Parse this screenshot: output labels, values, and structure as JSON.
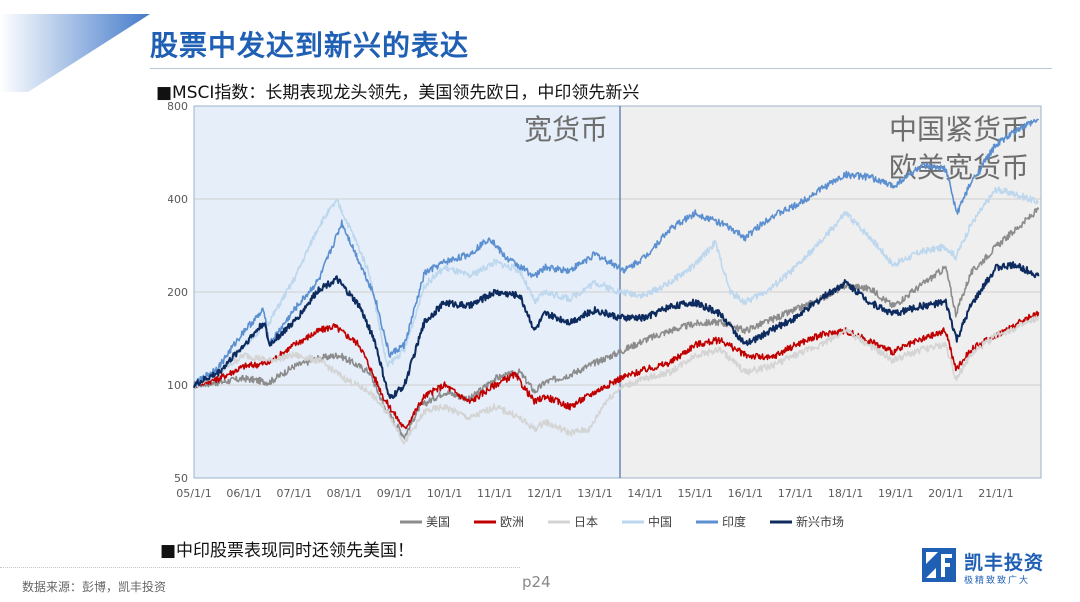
{
  "page": {
    "title": "股票中发达到新兴的表达",
    "bullet1": "■MSCI指数：长期表现龙头领先，美国领先欧日，中印领先新兴",
    "bullet2": "■中印股票表现同时还领先美国！",
    "source": "数据来源：彭博，凯丰投资",
    "page_number": "p24"
  },
  "logo": {
    "name": "凯丰投资",
    "slogan": "极精致致广大"
  },
  "colors": {
    "title": "#1f5fb4",
    "region_easy": "#e6eff9",
    "region_tight": "#efefef",
    "divider": "#4a6fa5"
  },
  "chart_data": {
    "type": "line",
    "y_scale": "log",
    "ylim": [
      50,
      800
    ],
    "y_ticks": [
      50,
      100,
      200,
      400,
      800
    ],
    "y_tick_labels": [
      "50",
      "100",
      "200",
      "400",
      "800"
    ],
    "x_tick_labels": [
      "05/1/1",
      "06/1/1",
      "07/1/1",
      "08/1/1",
      "09/1/1",
      "10/1/1",
      "11/1/1",
      "12/1/1",
      "13/1/1",
      "14/1/1",
      "15/1/1",
      "16/1/1",
      "17/1/1",
      "18/1/1",
      "19/1/1",
      "20/1/1",
      "21/1/1"
    ],
    "xlim": [
      2005.0,
      2021.9
    ],
    "regions": [
      {
        "label": "宽货币",
        "x_start": 2005.0,
        "x_end": 2013.5
      },
      {
        "label": "中国紧货币\n欧美宽货币",
        "x_start": 2013.5,
        "x_end": 2021.9
      }
    ],
    "legend_position": "bottom",
    "series": [
      {
        "name": "美国",
        "color": "#8c8c8c",
        "points": [
          [
            2005,
            100
          ],
          [
            2005.5,
            102
          ],
          [
            2006,
            105
          ],
          [
            2006.5,
            102
          ],
          [
            2007,
            115
          ],
          [
            2007.5,
            122
          ],
          [
            2007.9,
            125
          ],
          [
            2008.5,
            110
          ],
          [
            2008.8,
            85
          ],
          [
            2009.2,
            68
          ],
          [
            2009.5,
            85
          ],
          [
            2010,
            95
          ],
          [
            2010.5,
            90
          ],
          [
            2011,
            105
          ],
          [
            2011.5,
            110
          ],
          [
            2011.8,
            95
          ],
          [
            2012,
            102
          ],
          [
            2012.5,
            108
          ],
          [
            2013,
            118
          ],
          [
            2013.5,
            128
          ],
          [
            2014,
            140
          ],
          [
            2014.5,
            150
          ],
          [
            2015,
            158
          ],
          [
            2015.5,
            160
          ],
          [
            2016,
            150
          ],
          [
            2016.5,
            162
          ],
          [
            2017,
            175
          ],
          [
            2017.5,
            190
          ],
          [
            2018,
            210
          ],
          [
            2018.5,
            205
          ],
          [
            2018.95,
            180
          ],
          [
            2019.5,
            210
          ],
          [
            2020,
            240
          ],
          [
            2020.2,
            170
          ],
          [
            2020.5,
            230
          ],
          [
            2021,
            280
          ],
          [
            2021.5,
            330
          ],
          [
            2021.85,
            370
          ]
        ]
      },
      {
        "name": "欧洲",
        "color": "#c00000",
        "points": [
          [
            2005,
            100
          ],
          [
            2005.5,
            105
          ],
          [
            2006,
            115
          ],
          [
            2006.5,
            118
          ],
          [
            2007,
            135
          ],
          [
            2007.5,
            150
          ],
          [
            2007.8,
            155
          ],
          [
            2008.3,
            135
          ],
          [
            2008.8,
            90
          ],
          [
            2009.2,
            72
          ],
          [
            2009.6,
            92
          ],
          [
            2010,
            100
          ],
          [
            2010.5,
            88
          ],
          [
            2011,
            100
          ],
          [
            2011.4,
            108
          ],
          [
            2011.8,
            88
          ],
          [
            2012,
            92
          ],
          [
            2012.5,
            85
          ],
          [
            2013,
            95
          ],
          [
            2013.5,
            105
          ],
          [
            2014,
            112
          ],
          [
            2014.5,
            118
          ],
          [
            2015,
            135
          ],
          [
            2015.5,
            140
          ],
          [
            2016,
            125
          ],
          [
            2016.5,
            122
          ],
          [
            2017,
            135
          ],
          [
            2017.5,
            145
          ],
          [
            2018,
            150
          ],
          [
            2018.95,
            128
          ],
          [
            2019.5,
            140
          ],
          [
            2020,
            150
          ],
          [
            2020.2,
            112
          ],
          [
            2020.5,
            130
          ],
          [
            2021,
            145
          ],
          [
            2021.5,
            160
          ],
          [
            2021.85,
            172
          ]
        ]
      },
      {
        "name": "日本",
        "color": "#d4d4d4",
        "points": [
          [
            2005,
            100
          ],
          [
            2005.5,
            110
          ],
          [
            2006,
            125
          ],
          [
            2006.5,
            120
          ],
          [
            2007,
            125
          ],
          [
            2007.5,
            120
          ],
          [
            2008,
            105
          ],
          [
            2008.5,
            95
          ],
          [
            2008.9,
            80
          ],
          [
            2009.2,
            65
          ],
          [
            2009.6,
            82
          ],
          [
            2010,
            85
          ],
          [
            2010.5,
            78
          ],
          [
            2011,
            85
          ],
          [
            2011.4,
            80
          ],
          [
            2011.8,
            72
          ],
          [
            2012,
            76
          ],
          [
            2012.5,
            70
          ],
          [
            2012.9,
            72
          ],
          [
            2013.2,
            88
          ],
          [
            2013.5,
            98
          ],
          [
            2014,
            105
          ],
          [
            2014.5,
            110
          ],
          [
            2015,
            125
          ],
          [
            2015.5,
            130
          ],
          [
            2016,
            110
          ],
          [
            2016.5,
            115
          ],
          [
            2017,
            125
          ],
          [
            2017.5,
            135
          ],
          [
            2018,
            150
          ],
          [
            2018.95,
            120
          ],
          [
            2019.5,
            130
          ],
          [
            2020,
            135
          ],
          [
            2020.2,
            105
          ],
          [
            2020.5,
            125
          ],
          [
            2021,
            145
          ],
          [
            2021.5,
            155
          ],
          [
            2021.85,
            165
          ]
        ]
      },
      {
        "name": "中国",
        "color": "#bdd7ee",
        "points": [
          [
            2005,
            100
          ],
          [
            2005.5,
            110
          ],
          [
            2006,
            135
          ],
          [
            2006.5,
            160
          ],
          [
            2007,
            220
          ],
          [
            2007.5,
            330
          ],
          [
            2007.85,
            395
          ],
          [
            2008.2,
            300
          ],
          [
            2008.5,
            230
          ],
          [
            2008.85,
            115
          ],
          [
            2009.2,
            130
          ],
          [
            2009.6,
            210
          ],
          [
            2010,
            240
          ],
          [
            2010.5,
            225
          ],
          [
            2011,
            250
          ],
          [
            2011.5,
            235
          ],
          [
            2011.8,
            185
          ],
          [
            2012,
            200
          ],
          [
            2012.5,
            190
          ],
          [
            2013,
            215
          ],
          [
            2013.5,
            200
          ],
          [
            2014,
            195
          ],
          [
            2014.5,
            215
          ],
          [
            2015,
            245
          ],
          [
            2015.4,
            290
          ],
          [
            2015.7,
            200
          ],
          [
            2016,
            185
          ],
          [
            2016.5,
            205
          ],
          [
            2017,
            240
          ],
          [
            2017.5,
            290
          ],
          [
            2018,
            360
          ],
          [
            2018.5,
            300
          ],
          [
            2018.95,
            245
          ],
          [
            2019.5,
            270
          ],
          [
            2020,
            280
          ],
          [
            2020.2,
            260
          ],
          [
            2020.5,
            330
          ],
          [
            2021,
            430
          ],
          [
            2021.5,
            410
          ],
          [
            2021.85,
            390
          ]
        ]
      },
      {
        "name": "印度",
        "color": "#5b8fd0",
        "points": [
          [
            2005,
            100
          ],
          [
            2005.5,
            115
          ],
          [
            2006,
            150
          ],
          [
            2006.4,
            175
          ],
          [
            2006.5,
            135
          ],
          [
            2007,
            175
          ],
          [
            2007.5,
            220
          ],
          [
            2007.95,
            335
          ],
          [
            2008.3,
            250
          ],
          [
            2008.6,
            195
          ],
          [
            2008.9,
            125
          ],
          [
            2009.2,
            135
          ],
          [
            2009.6,
            230
          ],
          [
            2010,
            250
          ],
          [
            2010.5,
            265
          ],
          [
            2010.9,
            300
          ],
          [
            2011.2,
            260
          ],
          [
            2011.8,
            225
          ],
          [
            2012,
            240
          ],
          [
            2012.5,
            235
          ],
          [
            2013,
            265
          ],
          [
            2013.6,
            235
          ],
          [
            2014,
            260
          ],
          [
            2014.5,
            320
          ],
          [
            2015,
            360
          ],
          [
            2015.5,
            335
          ],
          [
            2016,
            300
          ],
          [
            2016.5,
            350
          ],
          [
            2017,
            380
          ],
          [
            2017.5,
            430
          ],
          [
            2018,
            480
          ],
          [
            2018.5,
            470
          ],
          [
            2018.95,
            440
          ],
          [
            2019.5,
            510
          ],
          [
            2020,
            500
          ],
          [
            2020.22,
            360
          ],
          [
            2020.5,
            450
          ],
          [
            2021,
            600
          ],
          [
            2021.5,
            680
          ],
          [
            2021.85,
            720
          ]
        ]
      },
      {
        "name": "新兴市场",
        "color": "#0d2b5e",
        "points": [
          [
            2005,
            100
          ],
          [
            2005.5,
            110
          ],
          [
            2006,
            135
          ],
          [
            2006.4,
            160
          ],
          [
            2006.5,
            135
          ],
          [
            2007,
            160
          ],
          [
            2007.5,
            205
          ],
          [
            2007.85,
            220
          ],
          [
            2008.3,
            180
          ],
          [
            2008.6,
            140
          ],
          [
            2008.9,
            90
          ],
          [
            2009.2,
            100
          ],
          [
            2009.6,
            160
          ],
          [
            2010,
            185
          ],
          [
            2010.5,
            180
          ],
          [
            2011,
            200
          ],
          [
            2011.5,
            195
          ],
          [
            2011.8,
            150
          ],
          [
            2012,
            170
          ],
          [
            2012.5,
            160
          ],
          [
            2013,
            175
          ],
          [
            2013.5,
            165
          ],
          [
            2014,
            165
          ],
          [
            2014.5,
            180
          ],
          [
            2015,
            185
          ],
          [
            2015.5,
            170
          ],
          [
            2016,
            135
          ],
          [
            2016.5,
            150
          ],
          [
            2017,
            165
          ],
          [
            2017.5,
            190
          ],
          [
            2018,
            215
          ],
          [
            2018.5,
            185
          ],
          [
            2018.95,
            170
          ],
          [
            2019.5,
            180
          ],
          [
            2020,
            185
          ],
          [
            2020.22,
            140
          ],
          [
            2020.5,
            180
          ],
          [
            2021,
            240
          ],
          [
            2021.4,
            245
          ],
          [
            2021.85,
            225
          ]
        ]
      }
    ]
  }
}
